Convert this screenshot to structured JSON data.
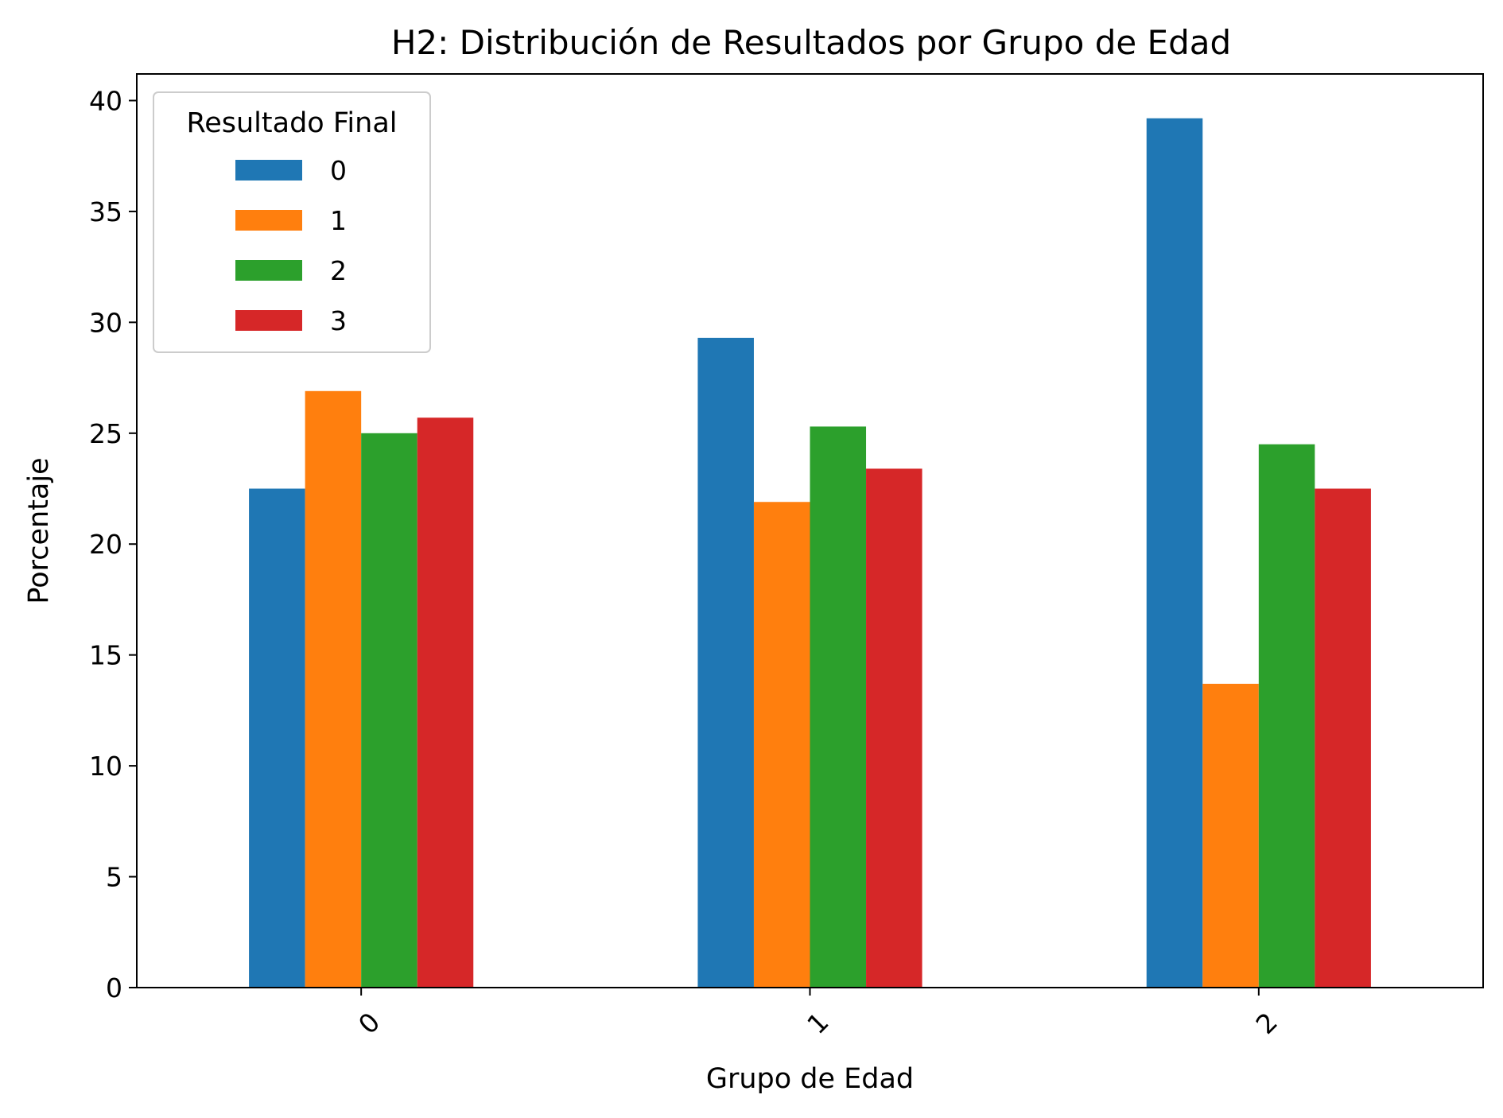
{
  "chart_data": {
    "type": "bar",
    "title": "H2: Distribución de Resultados por Grupo de Edad",
    "xlabel": "Grupo de Edad",
    "ylabel": "Porcentaje",
    "categories": [
      "0",
      "1",
      "2"
    ],
    "series": [
      {
        "name": "0",
        "color": "#1f77b4",
        "values": [
          22.5,
          29.3,
          39.2
        ]
      },
      {
        "name": "1",
        "color": "#ff7f0e",
        "values": [
          26.9,
          21.9,
          13.7
        ]
      },
      {
        "name": "2",
        "color": "#2ca02c",
        "values": [
          25.0,
          25.3,
          24.5
        ]
      },
      {
        "name": "3",
        "color": "#d62728",
        "values": [
          25.7,
          23.4,
          22.5
        ]
      }
    ],
    "ylim": [
      0,
      41.2
    ],
    "yticks": [
      0,
      5,
      10,
      15,
      20,
      25,
      30,
      35,
      40
    ],
    "grid": false,
    "legend": {
      "title": "Resultado Final",
      "placement": "upper-left"
    },
    "xtick_rotation": 45
  }
}
